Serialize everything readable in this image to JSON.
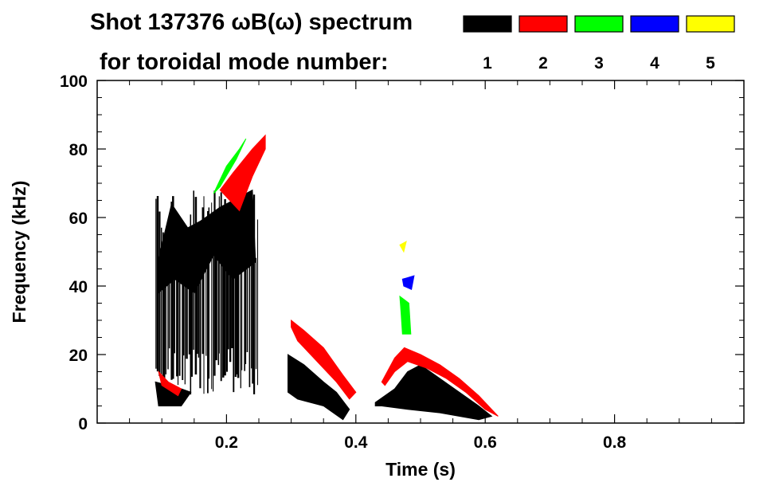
{
  "chart_data": {
    "type": "spectrogram",
    "title_line1": "Shot 137376 ωB(ω) spectrum",
    "title_line2": "for toroidal mode number:",
    "xlabel": "Time (s)",
    "ylabel": "Frequency (kHz)",
    "xlim": [
      0.0,
      1.0
    ],
    "ylim": [
      0,
      100
    ],
    "x_ticks": [
      {
        "value": 0.2,
        "label": "0.2"
      },
      {
        "value": 0.4,
        "label": "0.4"
      },
      {
        "value": 0.6,
        "label": "0.6"
      },
      {
        "value": 0.8,
        "label": "0.8"
      }
    ],
    "y_ticks": [
      {
        "value": 0,
        "label": "0"
      },
      {
        "value": 20,
        "label": "20"
      },
      {
        "value": 40,
        "label": "40"
      },
      {
        "value": 60,
        "label": "60"
      },
      {
        "value": 80,
        "label": "80"
      },
      {
        "value": 100,
        "label": "100"
      }
    ],
    "legend": [
      {
        "n": "1",
        "color": "#000000"
      },
      {
        "n": "2",
        "color": "#ff0000"
      },
      {
        "n": "3",
        "color": "#00ff00"
      },
      {
        "n": "4",
        "color": "#0000ff"
      },
      {
        "n": "5",
        "color": "#ffff00"
      }
    ],
    "regions": [
      {
        "mode": "1",
        "kind": "streaks",
        "t_start": 0.09,
        "t_end": 0.25,
        "f_low": 8,
        "f_high": 68,
        "count": 60
      },
      {
        "mode": "1",
        "kind": "poly",
        "points": [
          [
            0.095,
            48
          ],
          [
            0.115,
            64
          ],
          [
            0.14,
            57
          ],
          [
            0.16,
            59
          ],
          [
            0.19,
            63
          ],
          [
            0.24,
            68
          ],
          [
            0.245,
            47
          ],
          [
            0.21,
            42
          ],
          [
            0.18,
            49
          ],
          [
            0.15,
            38
          ],
          [
            0.12,
            42
          ],
          [
            0.095,
            38
          ]
        ]
      },
      {
        "mode": "1",
        "kind": "poly",
        "points": [
          [
            0.09,
            12
          ],
          [
            0.13,
            10
          ],
          [
            0.145,
            9
          ],
          [
            0.13,
            5
          ],
          [
            0.095,
            5
          ]
        ]
      },
      {
        "mode": "1",
        "kind": "poly",
        "points": [
          [
            0.295,
            20
          ],
          [
            0.32,
            17
          ],
          [
            0.35,
            12
          ],
          [
            0.37,
            9
          ],
          [
            0.39,
            4
          ],
          [
            0.38,
            1
          ],
          [
            0.35,
            5
          ],
          [
            0.31,
            7
          ],
          [
            0.295,
            9
          ]
        ]
      },
      {
        "mode": "1",
        "kind": "poly",
        "points": [
          [
            0.43,
            6
          ],
          [
            0.46,
            10
          ],
          [
            0.48,
            15
          ],
          [
            0.5,
            17
          ],
          [
            0.53,
            13
          ],
          [
            0.56,
            9
          ],
          [
            0.59,
            5
          ],
          [
            0.61,
            2
          ],
          [
            0.59,
            1
          ],
          [
            0.53,
            3
          ],
          [
            0.48,
            4
          ],
          [
            0.44,
            5
          ],
          [
            0.43,
            5
          ]
        ]
      },
      {
        "mode": "2",
        "kind": "poly",
        "points": [
          [
            0.22,
            62
          ],
          [
            0.24,
            72
          ],
          [
            0.26,
            80
          ],
          [
            0.26,
            84
          ],
          [
            0.24,
            80
          ],
          [
            0.21,
            73
          ],
          [
            0.19,
            68
          ]
        ]
      },
      {
        "mode": "2",
        "kind": "poly",
        "points": [
          [
            0.3,
            30
          ],
          [
            0.32,
            27
          ],
          [
            0.35,
            22
          ],
          [
            0.38,
            14
          ],
          [
            0.4,
            9
          ],
          [
            0.39,
            7
          ],
          [
            0.37,
            12
          ],
          [
            0.34,
            18
          ],
          [
            0.31,
            24
          ],
          [
            0.3,
            28
          ]
        ]
      },
      {
        "mode": "2",
        "kind": "poly",
        "points": [
          [
            0.44,
            12
          ],
          [
            0.46,
            19
          ],
          [
            0.475,
            22
          ],
          [
            0.5,
            20
          ],
          [
            0.53,
            17
          ],
          [
            0.56,
            13
          ],
          [
            0.59,
            8
          ],
          [
            0.61,
            4
          ],
          [
            0.62,
            2
          ],
          [
            0.6,
            4
          ],
          [
            0.57,
            9
          ],
          [
            0.54,
            13
          ],
          [
            0.51,
            16
          ],
          [
            0.48,
            18
          ],
          [
            0.46,
            15
          ],
          [
            0.445,
            11
          ]
        ]
      },
      {
        "mode": "2",
        "kind": "poly",
        "points": [
          [
            0.095,
            15
          ],
          [
            0.11,
            12
          ],
          [
            0.13,
            10
          ],
          [
            0.125,
            8
          ],
          [
            0.1,
            11
          ]
        ]
      },
      {
        "mode": "3",
        "kind": "poly",
        "points": [
          [
            0.18,
            67
          ],
          [
            0.2,
            75
          ],
          [
            0.22,
            80
          ],
          [
            0.23,
            83
          ],
          [
            0.215,
            77
          ],
          [
            0.19,
            69
          ]
        ]
      },
      {
        "mode": "3",
        "kind": "poly",
        "points": [
          [
            0.468,
            37
          ],
          [
            0.482,
            35
          ],
          [
            0.485,
            26
          ],
          [
            0.472,
            26
          ],
          [
            0.47,
            32
          ]
        ]
      },
      {
        "mode": "4",
        "kind": "poly",
        "points": [
          [
            0.472,
            42
          ],
          [
            0.49,
            43
          ],
          [
            0.486,
            39
          ],
          [
            0.474,
            40
          ]
        ]
      },
      {
        "mode": "5",
        "kind": "poly",
        "points": [
          [
            0.468,
            52
          ],
          [
            0.478,
            53
          ],
          [
            0.474,
            50
          ]
        ]
      }
    ]
  }
}
